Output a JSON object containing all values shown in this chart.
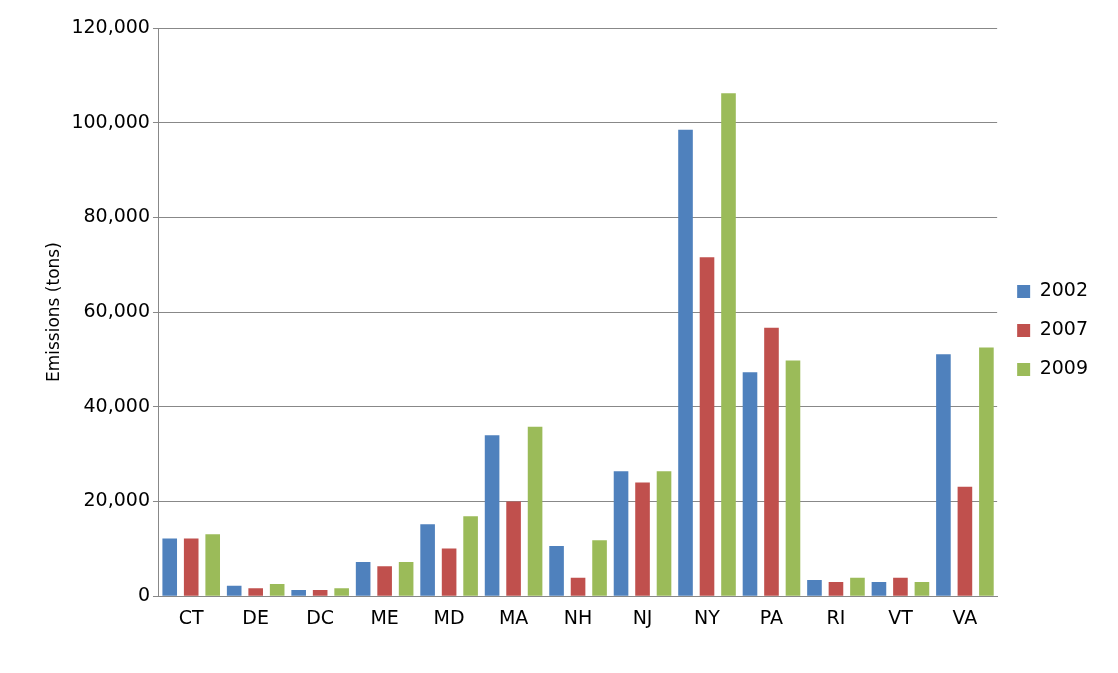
{
  "chart_data": {
    "type": "bar",
    "ylabel": "Emissions (tons)",
    "categories": [
      "CT",
      "DE",
      "DC",
      "ME",
      "MD",
      "MA",
      "NH",
      "NJ",
      "NY",
      "PA",
      "RI",
      "VT",
      "VA"
    ],
    "series": [
      {
        "name": "2002",
        "color": "#4f81bd",
        "values": [
          12200,
          2200,
          1300,
          7200,
          15200,
          34000,
          10600,
          26400,
          98500,
          47300,
          3400,
          3000,
          51100
        ]
      },
      {
        "name": "2007",
        "color": "#c0504d",
        "values": [
          12200,
          1700,
          1300,
          6300,
          10100,
          20000,
          3900,
          24000,
          71600,
          56700,
          3000,
          3900,
          23100
        ]
      },
      {
        "name": "2009",
        "color": "#9bbb59",
        "values": [
          13100,
          2600,
          1700,
          7200,
          16900,
          35800,
          11800,
          26400,
          106200,
          49800,
          3900,
          3000,
          52500
        ]
      }
    ],
    "ylim": [
      0,
      120000
    ],
    "yticks": [
      0,
      {
        "value": 20000,
        "label": "20,000"
      },
      {
        "value": 40000,
        "label": "40,000"
      },
      {
        "value": 60000,
        "label": "60,000"
      },
      {
        "value": 80000,
        "label": "80,000"
      },
      {
        "value": 100000,
        "label": "100,000"
      },
      {
        "value": 120000,
        "label": "120,000"
      }
    ],
    "grid": "y",
    "legend": "right"
  }
}
